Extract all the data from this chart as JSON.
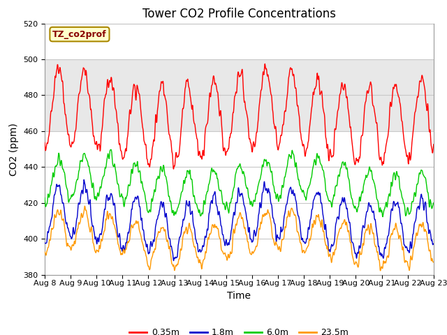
{
  "title": "Tower CO2 Profile Concentrations",
  "xlabel": "Time",
  "ylabel": "CO2 (ppm)",
  "ylim": [
    380,
    520
  ],
  "xlim": [
    0,
    15
  ],
  "xtick_labels": [
    "Aug 8",
    "Aug 9",
    "Aug 10",
    "Aug 11",
    "Aug 12",
    "Aug 13",
    "Aug 14",
    "Aug 15",
    "Aug 16",
    "Aug 17",
    "Aug 18",
    "Aug 19",
    "Aug 20",
    "Aug 21",
    "Aug 22",
    "Aug 23"
  ],
  "legend_entries": [
    "0.35m",
    "1.8m",
    "6.0m",
    "23.5m"
  ],
  "line_colors": [
    "#ff0000",
    "#0000cc",
    "#00cc00",
    "#ff9900"
  ],
  "tag_label": "TZ_co2prof",
  "shaded_band": [
    460,
    500
  ],
  "shaded_color": "#e8e8e8",
  "background_color": "#ffffff",
  "grid_color": "#c8c8c8",
  "title_fontsize": 12,
  "axis_label_fontsize": 10,
  "tick_fontsize": 8
}
